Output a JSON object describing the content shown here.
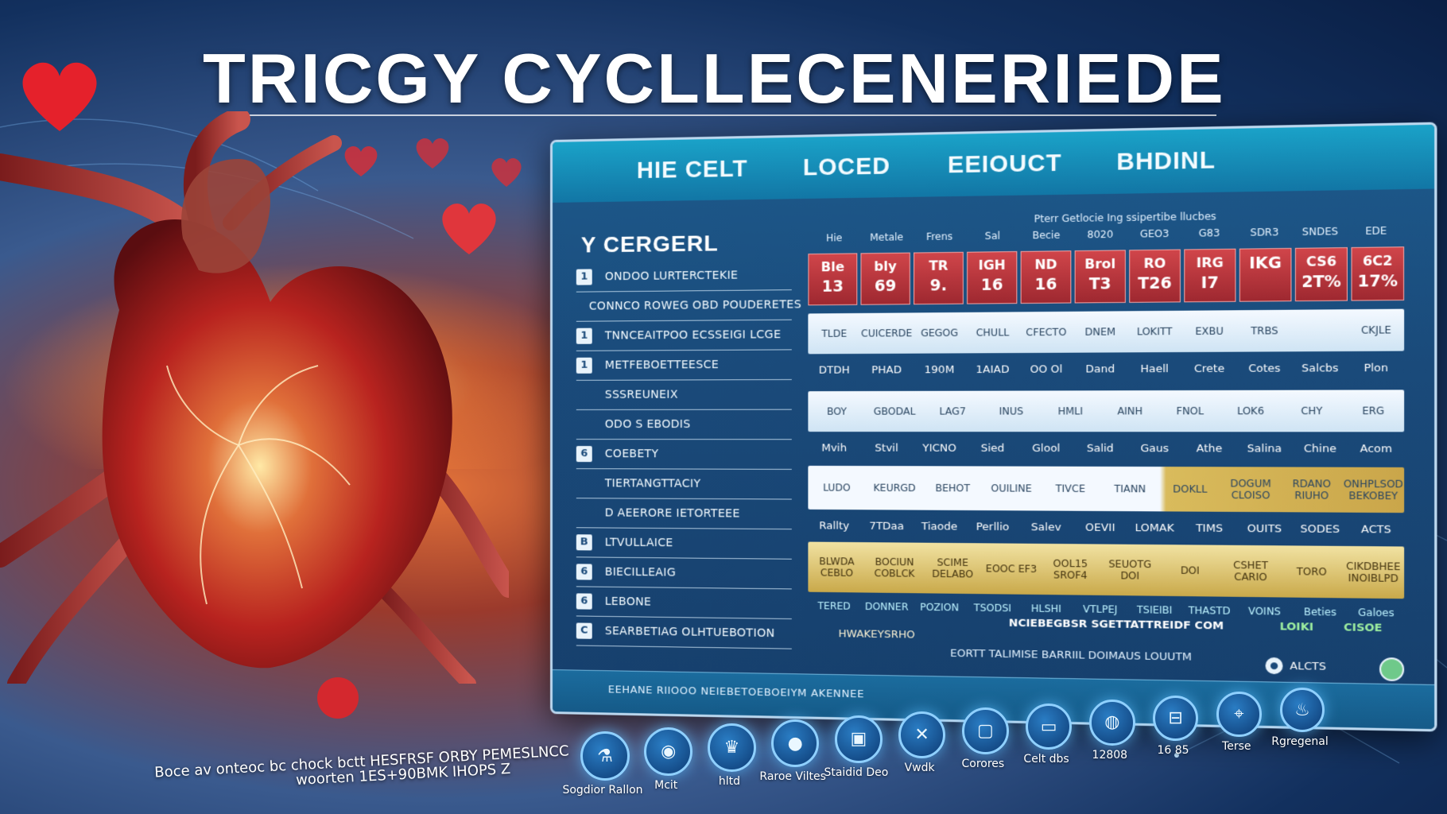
{
  "title": "TRICGY CYCLLECENERIEDE",
  "panel": {
    "tabs": [
      "HIE CELT",
      "LOCED",
      "EEIOUCT",
      "BHDINL"
    ],
    "side_title": "Y CERGERL",
    "side_items": [
      {
        "box": "1",
        "label": "ONDOO LURTERCTEKIE"
      },
      {
        "box": "",
        "label": "CONNCO ROWEG OBD POUDERETES"
      },
      {
        "box": "1",
        "label": "TNNCEAITPOO ECSSEIGI LCGE"
      },
      {
        "box": "1",
        "label": "METFEBOETTEESCE"
      },
      {
        "box": "",
        "label": "SSSREUNEIX"
      },
      {
        "box": "",
        "label": "ODO S EBODIS"
      },
      {
        "box": "6",
        "label": "COEBETY"
      },
      {
        "box": "",
        "label": "TIERTANGTTACIY"
      },
      {
        "box": "",
        "label": "D AEERORE IETORTEEE"
      },
      {
        "box": "B",
        "label": "LTVULLAICE"
      },
      {
        "box": "6",
        "label": "BIECILLEAIG"
      },
      {
        "box": "6",
        "label": "LEBONE"
      },
      {
        "box": "C",
        "label": "SEARBETIAG OLHTUEBOTION"
      }
    ],
    "table_caption": "Pterr Getlocie Ing ssipertibe llucbes",
    "headers": [
      "Hie",
      "Metale",
      "Frens",
      "Sal",
      "Becie",
      "8020",
      "GEO3",
      "G83",
      "SDR3",
      "SNDES",
      "EDE"
    ],
    "red_cells": [
      {
        "top": "Ble",
        "bottom": "13"
      },
      {
        "top": "bly",
        "bottom": "69"
      },
      {
        "top": "TR",
        "bottom": "9."
      },
      {
        "top": "IGH",
        "bottom": "16"
      },
      {
        "top": "ND",
        "bottom": "16"
      },
      {
        "top": "Brol",
        "bottom": "T3"
      },
      {
        "top": "RO",
        "bottom": "T26"
      },
      {
        "top": "IRG",
        "bottom": "I7"
      },
      {
        "top": "",
        "bottom": "IKG"
      },
      {
        "top": "CS6",
        "bottom": "2T%"
      },
      {
        "top": "6C2",
        "bottom": "17%"
      }
    ],
    "band1": [
      "TLDE",
      "CUICERDE",
      "GEGOG",
      "CHULL",
      "CFECTO",
      "DNEM",
      "LOKITT",
      "EXBU",
      "TRBS",
      "",
      "CKJLE"
    ],
    "labels1": [
      "DTDH",
      "PHAD",
      "190M",
      "1AIAD",
      "OO Ol",
      "Dand",
      "Haell",
      "Crete",
      "Cotes",
      "Salcbs",
      "Plon"
    ],
    "band2": [
      "BOY",
      "GBODAL",
      "LAG7",
      "INUS",
      "HMLI",
      "AINH",
      "FNOL",
      "LOK6",
      "CHY",
      "ERG"
    ],
    "labels2": [
      "Mvih",
      "Stvil",
      "YICNO",
      "Sied",
      "Glool",
      "Salid",
      "Gaus",
      "Athe",
      "Salina",
      "Chine",
      "Acom"
    ],
    "band3": [
      "LUDO",
      "KEURGD",
      "BEHOT",
      "OUILINE",
      "TIVCE",
      "TIANN",
      "DOKLL",
      "DOGUM CLOISO",
      "RDANO RIUHO",
      "ONHPLSOD BEKOBEY"
    ],
    "labels3": [
      "Rallty",
      "7TDaa",
      "Tiaode",
      "Perllio",
      "Salev",
      "OEVII",
      "LOMAK",
      "TIMS",
      "OUITS",
      "SODES",
      "ACTS"
    ],
    "band4": [
      "BLWDA CEBLO",
      "BOCIUN COBLCK",
      "SCIME DELABO",
      "EOOC EF3",
      "OOL15 SROF4",
      "SEUOTG DOI",
      "DOI",
      "CSHET CARIO",
      "TORO",
      "CIKDBHEE INOIBLPD"
    ],
    "bottom_labels": [
      "TERED",
      "DONNER",
      "POZION",
      "TSODSI",
      "HLSHI",
      "VTLPEJ",
      "TSIEIBI",
      "THASTD",
      "VOINS",
      "Beties",
      "Galoes"
    ],
    "sub_text": "HWAKEYSRHO",
    "link_text": "NCIEBEGBSR SGETTATTREIDF COM",
    "link_extra": "LOIKI",
    "link_extra2": "CISOE",
    "alerts_label": "ALCTS",
    "footer_text": "EEHANE RIIOOO NEIEBETOEBOEIYM AKENNEE",
    "footer_center": "EORTT TALIMISE BARRIIL DOIMAUS LOUUTM"
  },
  "icons": [
    {
      "name": "Sogdior Rallon",
      "glyph": "⚗"
    },
    {
      "name": "Mcit",
      "glyph": "◉"
    },
    {
      "name": "hltd",
      "glyph": "♛"
    },
    {
      "name": "Raroe Viltes",
      "glyph": "●"
    },
    {
      "name": "Staidid Deo",
      "glyph": "▣"
    },
    {
      "name": "Vwdk",
      "glyph": "✕"
    },
    {
      "name": "Corores",
      "glyph": "▢"
    },
    {
      "name": "Celt dbs",
      "glyph": "▭"
    },
    {
      "name": "12808",
      "glyph": "◍"
    },
    {
      "name": "16 85",
      "glyph": "⊟"
    },
    {
      "name": "Terse",
      "glyph": "⌖"
    },
    {
      "name": "Rgregenal",
      "glyph": "♨"
    }
  ],
  "captions": {
    "line1": "Boce av onteoc bc chock bctt HESFRSF ORBY PEMESLNCC",
    "line2": "woorten 1ES+90BMK IHOPS Z"
  },
  "colors": {
    "accent": "#1aa2c8",
    "red": "#c23a3f",
    "gold": "#d9bb5c",
    "bg": "#12305e"
  }
}
